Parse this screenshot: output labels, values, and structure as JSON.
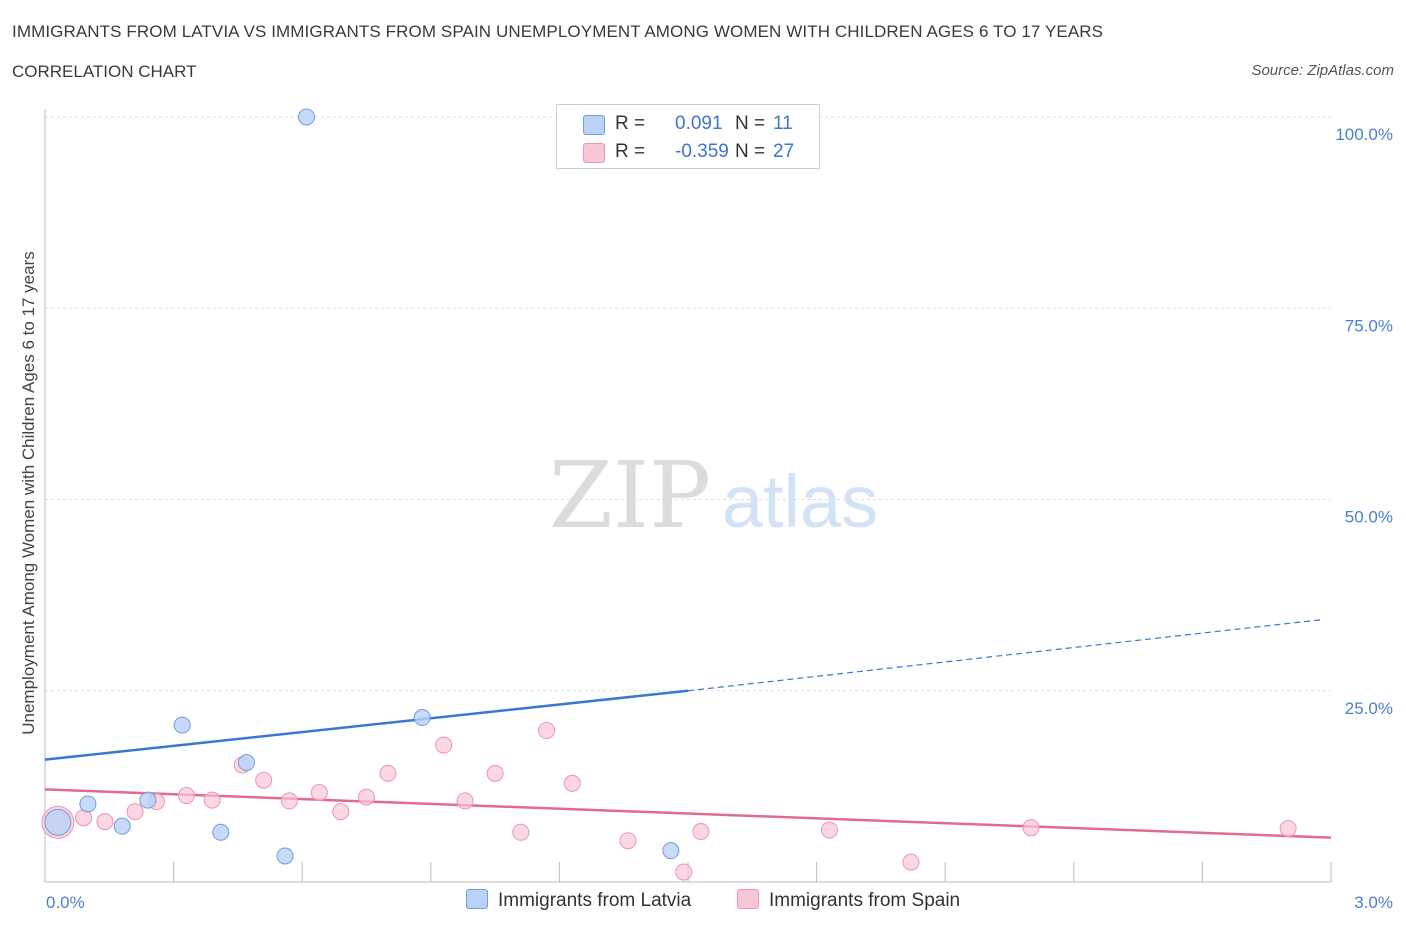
{
  "title": "IMMIGRANTS FROM LATVIA VS IMMIGRANTS FROM SPAIN UNEMPLOYMENT AMONG WOMEN WITH CHILDREN AGES 6 TO 17 YEARS",
  "subtitle": "CORRELATION CHART",
  "source": "Source: ZipAtlas.com",
  "watermark": {
    "zip": "ZIP",
    "atlas": "atlas"
  },
  "legend": {
    "r_label": "R =",
    "n_label": "N =",
    "latvia": {
      "r": "0.091",
      "n": "11"
    },
    "spain": {
      "r": "-0.359",
      "n": "27"
    }
  },
  "colors": {
    "latvia_fill": "#b9d2f6",
    "latvia_stroke": "#6f9de0",
    "latvia_line": "#3a78d0",
    "spain_fill": "#f9c6d5",
    "spain_stroke": "#ee95b0",
    "spain_line": "#e0699a",
    "tick_text": "#4a7fcf",
    "grid": "#dddddd"
  },
  "chart_data": {
    "type": "scatter",
    "title": "IMMIGRANTS FROM LATVIA VS IMMIGRANTS FROM SPAIN UNEMPLOYMENT AMONG WOMEN WITH CHILDREN AGES 6 TO 17 YEARS",
    "xlabel": "",
    "ylabel": "Unemployment Among Women with Children Ages 6 to 17 years",
    "xlim": [
      0,
      3.0
    ],
    "ylim": [
      0,
      100
    ],
    "x_ticks": [
      0.0,
      3.0
    ],
    "x_tick_labels": [
      "0.0%",
      "3.0%"
    ],
    "y_ticks": [
      25,
      50,
      75,
      100
    ],
    "y_tick_labels": [
      "25.0%",
      "50.0%",
      "75.0%",
      "100.0%"
    ],
    "grid": true,
    "legend_position": "top-center",
    "series": [
      {
        "name": "Immigrants from Latvia",
        "points": [
          {
            "x": 0.03,
            "y": 7.8,
            "big": true
          },
          {
            "x": 0.1,
            "y": 10.2
          },
          {
            "x": 0.18,
            "y": 7.3
          },
          {
            "x": 0.24,
            "y": 10.7
          },
          {
            "x": 0.32,
            "y": 20.5
          },
          {
            "x": 0.41,
            "y": 6.5
          },
          {
            "x": 0.47,
            "y": 15.6
          },
          {
            "x": 0.56,
            "y": 3.4
          },
          {
            "x": 0.61,
            "y": 100.0
          },
          {
            "x": 0.88,
            "y": 21.5
          },
          {
            "x": 1.46,
            "y": 4.1
          }
        ],
        "trend": {
          "x_start": 0.0,
          "y_start": 16.0,
          "x_solid_end": 1.5,
          "y_solid_end": 25.0,
          "x_end": 2.98,
          "y_end": 34.3
        }
      },
      {
        "name": "Immigrants from Spain",
        "points": [
          {
            "x": 0.03,
            "y": 7.8,
            "big": true
          },
          {
            "x": 0.09,
            "y": 8.4
          },
          {
            "x": 0.14,
            "y": 7.9
          },
          {
            "x": 0.21,
            "y": 9.2
          },
          {
            "x": 0.26,
            "y": 10.5
          },
          {
            "x": 0.33,
            "y": 11.3
          },
          {
            "x": 0.39,
            "y": 10.7
          },
          {
            "x": 0.46,
            "y": 15.3
          },
          {
            "x": 0.51,
            "y": 13.3
          },
          {
            "x": 0.57,
            "y": 10.6
          },
          {
            "x": 0.64,
            "y": 11.7
          },
          {
            "x": 0.69,
            "y": 9.2
          },
          {
            "x": 0.75,
            "y": 11.1
          },
          {
            "x": 0.8,
            "y": 14.2
          },
          {
            "x": 0.93,
            "y": 17.9
          },
          {
            "x": 0.98,
            "y": 10.6
          },
          {
            "x": 1.05,
            "y": 14.2
          },
          {
            "x": 1.11,
            "y": 6.5
          },
          {
            "x": 1.17,
            "y": 19.8
          },
          {
            "x": 1.23,
            "y": 12.9
          },
          {
            "x": 1.36,
            "y": 5.4
          },
          {
            "x": 1.49,
            "y": 1.3
          },
          {
            "x": 1.53,
            "y": 6.6
          },
          {
            "x": 1.83,
            "y": 6.8
          },
          {
            "x": 2.02,
            "y": 2.6
          },
          {
            "x": 2.3,
            "y": 7.1
          },
          {
            "x": 2.9,
            "y": 7.0
          }
        ],
        "trend": {
          "x_start": 0.0,
          "y_start": 12.1,
          "x_end": 3.0,
          "y_end": 5.8
        }
      }
    ]
  }
}
